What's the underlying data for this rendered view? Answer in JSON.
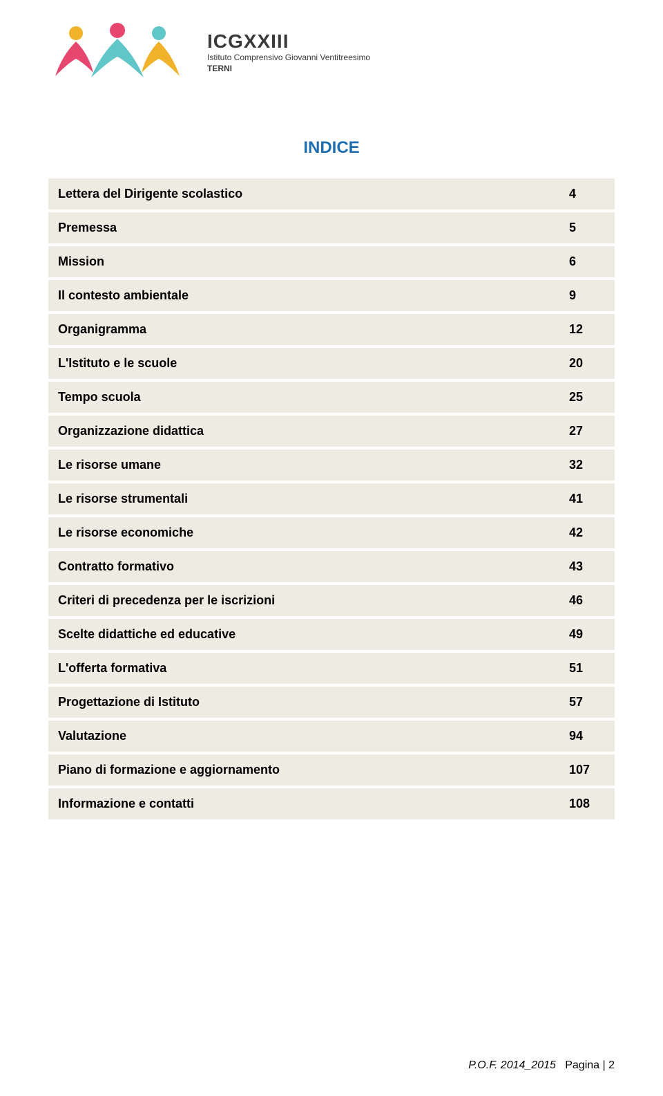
{
  "header": {
    "brand_title": "ICGXXIII",
    "brand_sub": "Istituto Comprensivo Giovanni Ventitreesimo",
    "brand_city": "TERNI",
    "logo_colors": {
      "fig1_body": "#e7476f",
      "fig1_head": "#f0b22a",
      "fig2_body": "#60c6c7",
      "fig2_head": "#e7476f",
      "fig3_body": "#f0b22a",
      "fig3_head": "#60c6c7"
    }
  },
  "title": "INDICE",
  "rows": [
    {
      "label": "Lettera del Dirigente scolastico",
      "page": "4"
    },
    {
      "label": "Premessa",
      "page": "5"
    },
    {
      "label": "Mission",
      "page": "6"
    },
    {
      "label": "Il contesto ambientale",
      "page": "9"
    },
    {
      "label": "Organigramma",
      "page": "12"
    },
    {
      "label": "L'Istituto e  le scuole",
      "page": "20"
    },
    {
      "label": "Tempo scuola",
      "page": "25"
    },
    {
      "label": "Organizzazione didattica",
      "page": "27"
    },
    {
      "label": "Le risorse umane",
      "page": "32"
    },
    {
      "label": "Le risorse strumentali",
      "page": "41"
    },
    {
      "label": "Le risorse economiche",
      "page": "42"
    },
    {
      "label": "Contratto formativo",
      "page": "43"
    },
    {
      "label": "Criteri di precedenza per le iscrizioni",
      "page": "46"
    },
    {
      "label": "Scelte didattiche ed educative",
      "page": "49"
    },
    {
      "label": "L'offerta formativa",
      "page": "51"
    },
    {
      "label": "Progettazione di Istituto",
      "page": "57"
    },
    {
      "label": "Valutazione",
      "page": "94"
    },
    {
      "label": "Piano di formazione e aggiornamento",
      "page": "107"
    },
    {
      "label": "Informazione e contatti",
      "page": "108"
    }
  ],
  "footer": {
    "src": "P.O.F. 2014_2015",
    "page_label": "Pagina | 2"
  },
  "table_style": {
    "row_bg": "#eeebe3",
    "row_gap_color": "#ffffff",
    "font_size": 18,
    "label_weight": "bold"
  }
}
